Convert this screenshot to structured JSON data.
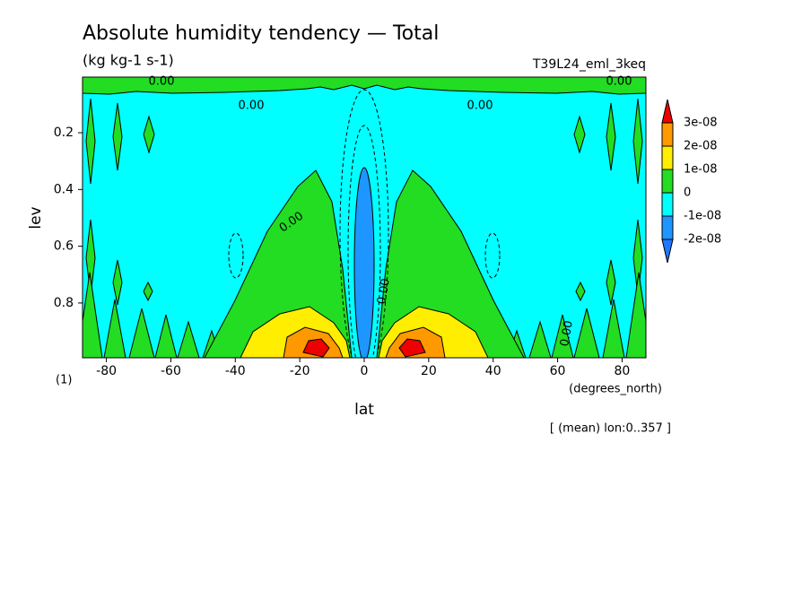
{
  "chart_data": {
    "type": "contour",
    "title": "Absolute humidity tendency — Total",
    "subtitle": "(kg kg-1 s-1)",
    "annotation_right": "T39L24_eml_3keq",
    "x_label": "lat",
    "x_units": "(degrees_north)",
    "y_label": "lev",
    "panel_label": "(1)",
    "footnote": "[ (mean) lon:0..357 ]",
    "xlim": [
      -87.4,
      87.4
    ],
    "xticks": [
      -80,
      -60,
      -40,
      -20,
      0,
      20,
      40,
      60,
      80
    ],
    "ylim": [
      0.993,
      0.004
    ],
    "yticks": [
      0.2,
      0.4,
      0.6,
      0.8
    ],
    "levels": [
      {
        "value": -2e-08,
        "label": "-2e-08"
      },
      {
        "value": -1e-08,
        "label": "-1e-08"
      },
      {
        "value": 0,
        "label": "0"
      },
      {
        "value": 1e-08,
        "label": "1e-08"
      },
      {
        "value": 2e-08,
        "label": "2e-08"
      },
      {
        "value": 3e-08,
        "label": "3e-08"
      }
    ],
    "colors": [
      "#1e78ff",
      "#1e96ff",
      "#00ffff",
      "#22dd22",
      "#ffee00",
      "#ff9900",
      "#ee0000"
    ],
    "contour_labels": [
      "0.00",
      "0.00",
      "0.00",
      "0.00",
      "0.00",
      "0.00",
      "0.00"
    ]
  }
}
